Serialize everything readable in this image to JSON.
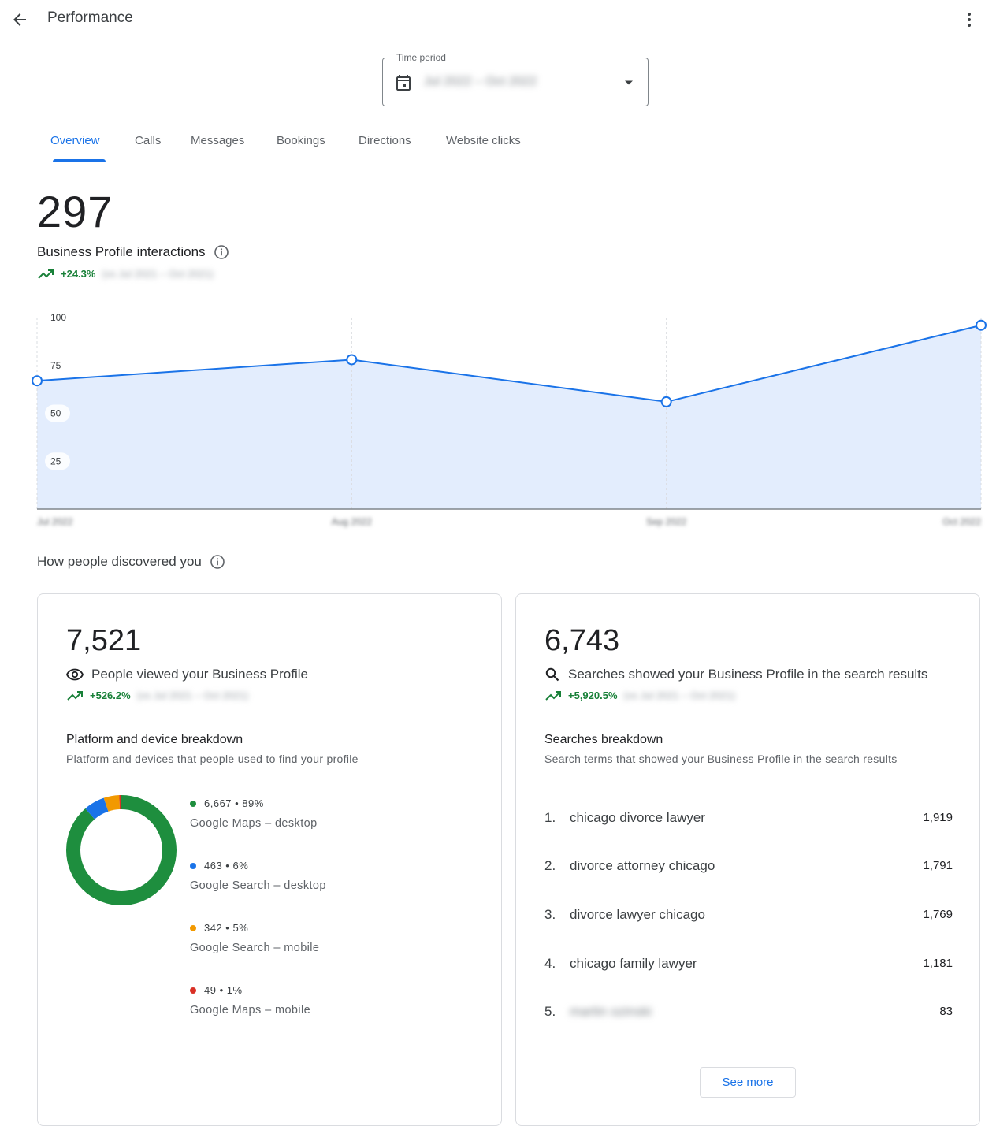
{
  "header": {
    "title": "Performance"
  },
  "time_period": {
    "label": "Time period",
    "value": "Jul 2022 – Oct 2022"
  },
  "tabs": [
    {
      "label": "Overview",
      "active": true
    },
    {
      "label": "Calls"
    },
    {
      "label": "Messages"
    },
    {
      "label": "Bookings"
    },
    {
      "label": "Directions"
    },
    {
      "label": "Website clicks"
    }
  ],
  "interactions": {
    "total": "297",
    "label": "Business Profile interactions",
    "change": "+24.3%",
    "comparison": "(vs Jul 2021 – Oct 2021)"
  },
  "chart_data": {
    "type": "area",
    "categories": [
      "Jul 2022",
      "Aug 2022",
      "Sep 2022",
      "Oct 2022"
    ],
    "values": [
      67,
      78,
      56,
      96
    ],
    "ylim": [
      0,
      100
    ],
    "yticks": [
      "25",
      "50",
      "75",
      "100"
    ],
    "grid": true,
    "color": "#1a73e8",
    "fill": "#e3edfd"
  },
  "discovery": {
    "title": "How people discovered you"
  },
  "views": {
    "total": "7,521",
    "label": "People viewed your Business Profile",
    "change": "+526.2%",
    "comparison": "(vs Jul 2021 – Oct 2021)",
    "breakdown_title": "Platform and device breakdown",
    "breakdown_subtitle": "Platform and devices that people used to find your profile",
    "platforms": [
      {
        "value": "6,667 • 89%",
        "name": "Google Maps – desktop",
        "count": 6667,
        "color": "#1e8e3e"
      },
      {
        "value": "463 • 6%",
        "name": "Google Search – desktop",
        "count": 463,
        "color": "#1a73e8"
      },
      {
        "value": "342 • 5%",
        "name": "Google Search – mobile",
        "count": 342,
        "color": "#f29900"
      },
      {
        "value": "49 • 1%",
        "name": "Google Maps – mobile",
        "count": 49,
        "color": "#d93025"
      }
    ]
  },
  "searches": {
    "total": "6,743",
    "label": "Searches showed your Business Profile in the search results",
    "change": "+5,920.5%",
    "comparison": "(vs Jul 2021 – Oct 2021)",
    "breakdown_title": "Searches breakdown",
    "breakdown_subtitle": "Search terms that showed your Business Profile in the search results",
    "terms": [
      {
        "rank": "1.",
        "term": "chicago divorce lawyer",
        "count": "1,919"
      },
      {
        "rank": "2.",
        "term": "divorce attorney chicago",
        "count": "1,791"
      },
      {
        "rank": "3.",
        "term": "divorce lawyer chicago",
        "count": "1,769"
      },
      {
        "rank": "4.",
        "term": "chicago family lawyer",
        "count": "1,181"
      },
      {
        "rank": "5.",
        "term": "martin ozinski",
        "count": "83"
      }
    ],
    "see_more": "See more"
  }
}
